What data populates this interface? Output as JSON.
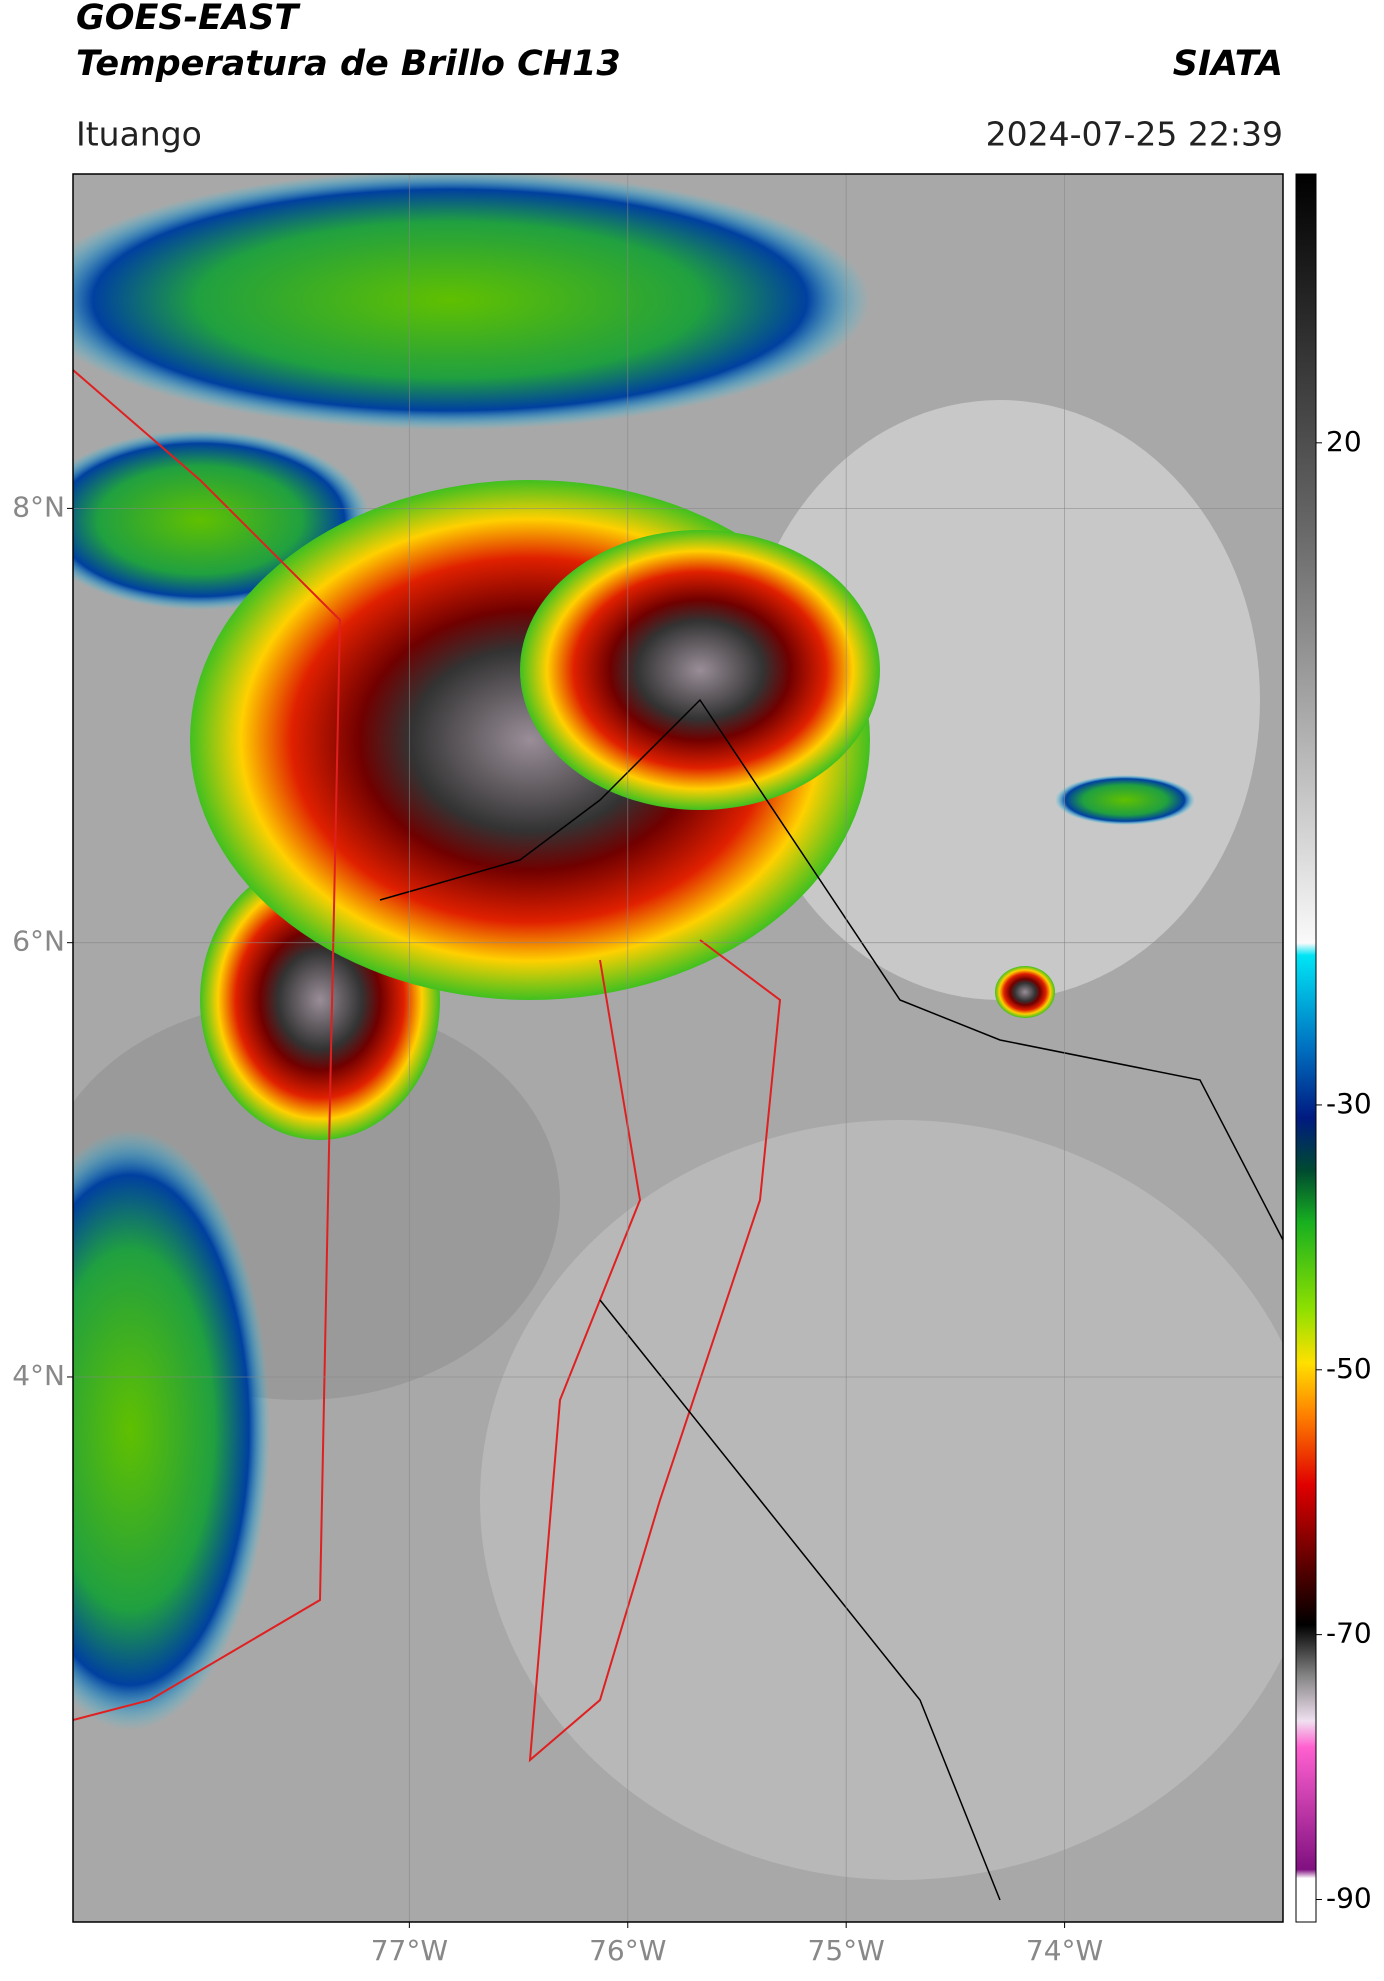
{
  "header": {
    "title": "GOES-EAST",
    "subtitle": "Temperatura de Brillo CH13",
    "brand": "SIATA",
    "location": "Ituango",
    "timestamp": "2024-07-25 22:39"
  },
  "map": {
    "xlim": [
      -78.54,
      -73.0
    ],
    "ylim": [
      1.49,
      9.54
    ],
    "xticks": [
      {
        "value": -77,
        "label": "77°W"
      },
      {
        "value": -76,
        "label": "76°W"
      },
      {
        "value": -75,
        "label": "75°W"
      },
      {
        "value": -74,
        "label": "74°W"
      }
    ],
    "yticks": [
      {
        "value": 8,
        "label": "8°N"
      },
      {
        "value": 6,
        "label": "6°N"
      },
      {
        "value": 4,
        "label": "4°N"
      }
    ],
    "grid": true
  },
  "colorbar": {
    "ylim": [
      -91.7,
      40.3
    ],
    "yticks": [
      20,
      -30,
      -50,
      -70,
      -90
    ]
  }
}
